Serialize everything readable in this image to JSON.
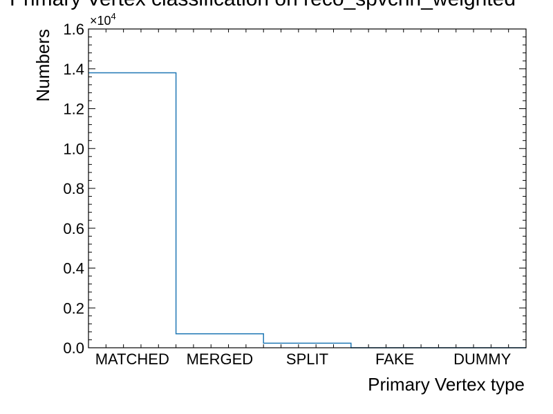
{
  "chart_data": {
    "type": "bar",
    "style": "step-histogram",
    "title": "Primary Vertex classification on reco_spvcnn_weighted",
    "xlabel": "Primary Vertex type",
    "ylabel": "Numbers",
    "categories": [
      "MATCHED",
      "MERGED",
      "SPLIT",
      "FAKE",
      "DUMMY"
    ],
    "values": [
      13800,
      700,
      230,
      0,
      0
    ],
    "ylim": [
      0,
      16000
    ],
    "y_scale_multiplier": {
      "base": "×10",
      "exponent": "4"
    },
    "yticks": [
      "0.0",
      "0.2",
      "0.4",
      "0.6",
      "0.8",
      "1.0",
      "1.2",
      "1.4",
      "1.6"
    ],
    "ytick_values": [
      0,
      2000,
      4000,
      6000,
      8000,
      10000,
      12000,
      14000,
      16000
    ],
    "line_color": "#1f77b4",
    "grid": false,
    "legend": "none"
  }
}
